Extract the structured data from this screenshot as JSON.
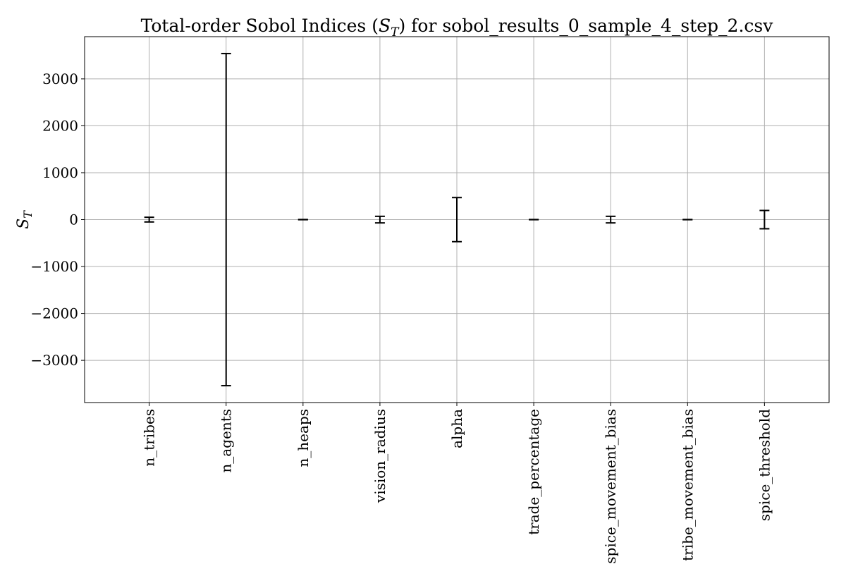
{
  "chart_data": {
    "type": "errorbar",
    "title_main": "Total-order Sobol Indices (",
    "title_sym": "S",
    "title_sub": "T",
    "title_end": ") for sobol_results_0_sample_4_step_2.csv",
    "ylabel_sym": "S",
    "ylabel_sub": "T",
    "categories": [
      "n_tribes",
      "n_agents",
      "n_heaps",
      "vision_radius",
      "alpha",
      "trade_percentage",
      "spice_movement_bias",
      "tribe_movement_bias",
      "spice_threshold"
    ],
    "values": [
      0,
      0,
      0,
      0,
      0,
      0,
      0,
      0,
      0
    ],
    "errors": [
      50,
      3540,
      2,
      70,
      470,
      2,
      70,
      2,
      195
    ],
    "ylim": [
      -3900,
      3900
    ],
    "yticks": [
      -3000,
      -2000,
      -1000,
      0,
      1000,
      2000,
      3000
    ],
    "ytick_labels": [
      "−3000",
      "−2000",
      "−1000",
      "0",
      "1000",
      "2000",
      "3000"
    ],
    "grid": true
  }
}
